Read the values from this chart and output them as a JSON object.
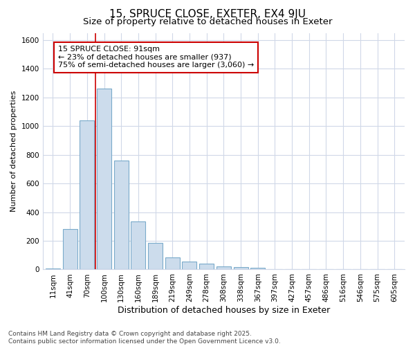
{
  "title1": "15, SPRUCE CLOSE, EXETER, EX4 9JU",
  "title2": "Size of property relative to detached houses in Exeter",
  "xlabel": "Distribution of detached houses by size in Exeter",
  "ylabel": "Number of detached properties",
  "categories": [
    "11sqm",
    "41sqm",
    "70sqm",
    "100sqm",
    "130sqm",
    "160sqm",
    "189sqm",
    "219sqm",
    "249sqm",
    "278sqm",
    "308sqm",
    "338sqm",
    "367sqm",
    "397sqm",
    "427sqm",
    "457sqm",
    "486sqm",
    "516sqm",
    "546sqm",
    "575sqm",
    "605sqm"
  ],
  "values": [
    5,
    280,
    1040,
    1260,
    760,
    335,
    185,
    85,
    55,
    40,
    20,
    15,
    10,
    2,
    1,
    1,
    0,
    0,
    0,
    0,
    0
  ],
  "bar_color": "#ccdcec",
  "bar_edge_color": "#7aaaca",
  "vline_color": "#cc0000",
  "vline_x_idx": 2.5,
  "annotation_text": "15 SPRUCE CLOSE: 91sqm\n← 23% of detached houses are smaller (937)\n75% of semi-detached houses are larger (3,060) →",
  "annotation_box_facecolor": "#ffffff",
  "annotation_box_edgecolor": "#cc0000",
  "ylim": [
    0,
    1650
  ],
  "yticks": [
    0,
    200,
    400,
    600,
    800,
    1000,
    1200,
    1400,
    1600
  ],
  "background_color": "#ffffff",
  "plot_bg_color": "#ffffff",
  "grid_color": "#d0d8e8",
  "footnote": "Contains HM Land Registry data © Crown copyright and database right 2025.\nContains public sector information licensed under the Open Government Licence v3.0.",
  "title1_fontsize": 11,
  "title2_fontsize": 9.5,
  "xlabel_fontsize": 9,
  "ylabel_fontsize": 8,
  "tick_fontsize": 7.5,
  "annotation_fontsize": 8,
  "footnote_fontsize": 6.5
}
